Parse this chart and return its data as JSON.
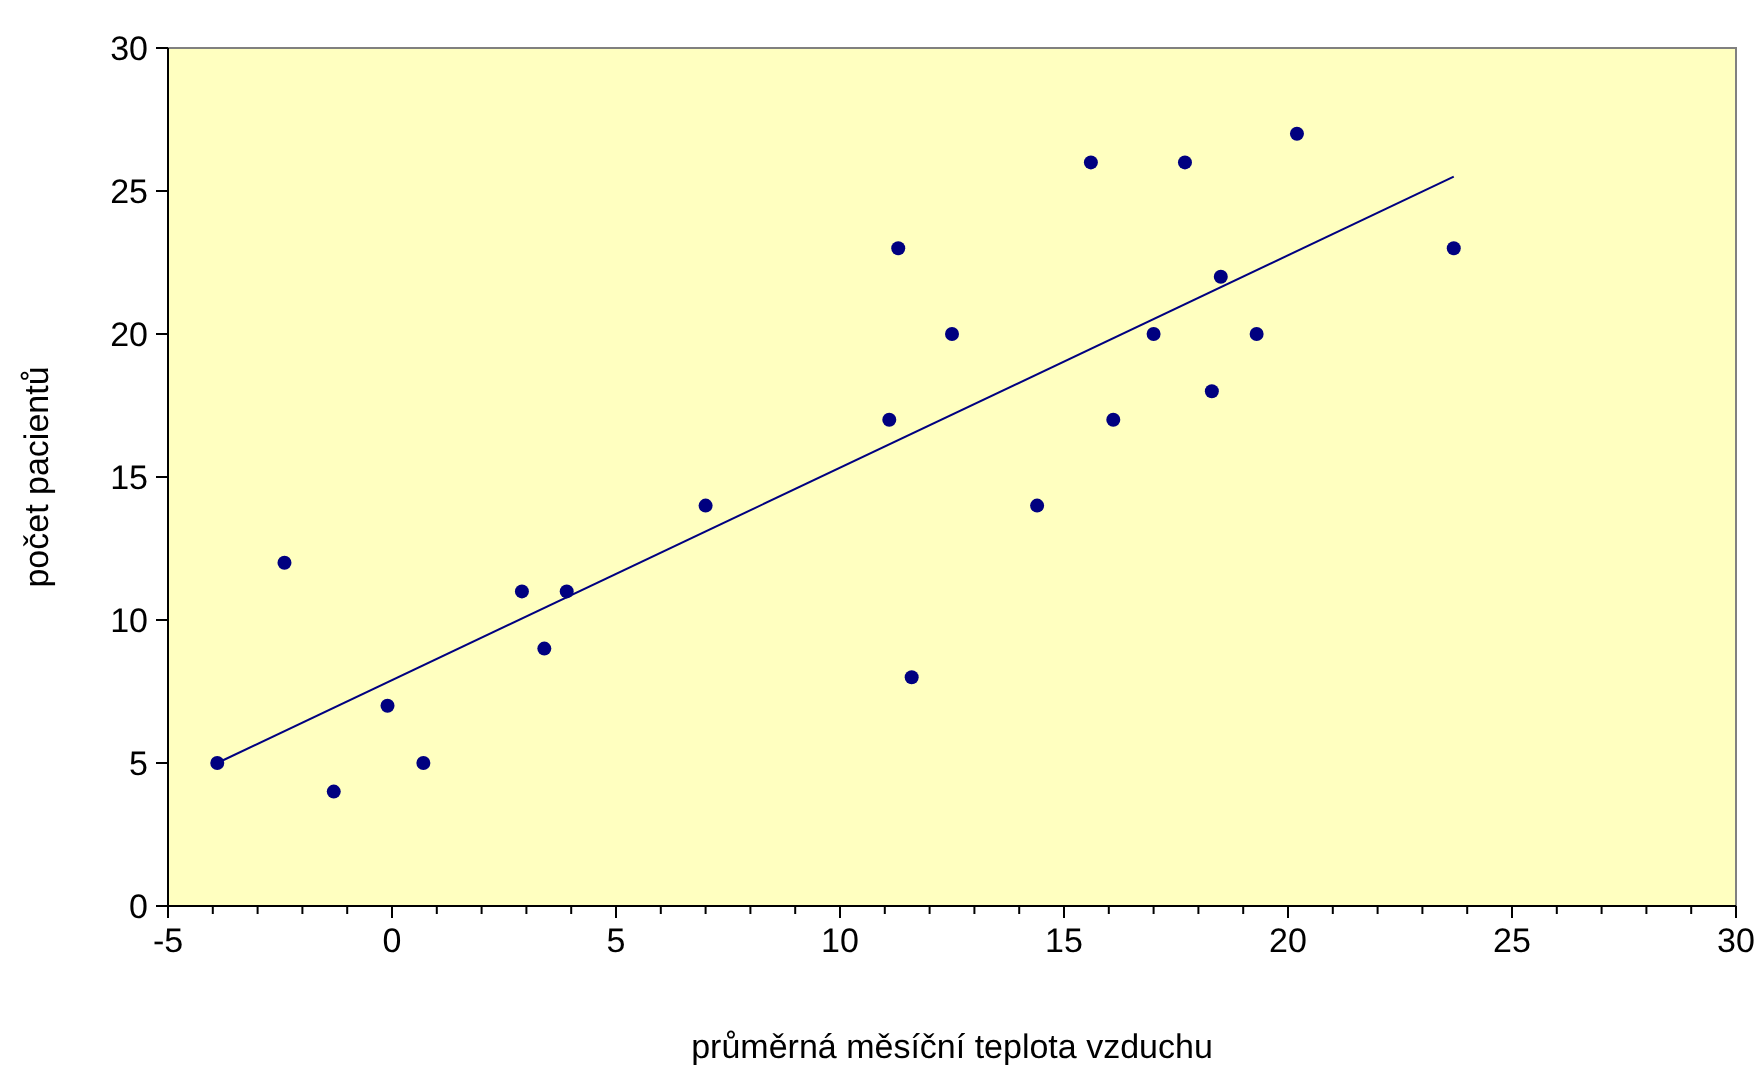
{
  "chart_data": {
    "type": "scatter",
    "xlabel": "průměrná měsíční teplota vzduchu",
    "ylabel": "počet pacientů",
    "xlim": [
      -5,
      30
    ],
    "ylim": [
      0,
      30
    ],
    "xticks": [
      -5,
      {
        "value": -4,
        "label": null
      },
      {
        "value": -3,
        "label": null
      },
      {
        "value": -2,
        "label": null
      },
      {
        "value": -1,
        "label": null
      },
      0,
      {
        "value": 1,
        "label": null
      },
      {
        "value": 2,
        "label": null
      },
      {
        "value": 3,
        "label": null
      },
      {
        "value": 4,
        "label": null
      },
      5,
      {
        "value": 6,
        "label": null
      },
      {
        "value": 7,
        "label": null
      },
      {
        "value": 8,
        "label": null
      },
      {
        "value": 9,
        "label": null
      },
      10,
      {
        "value": 11,
        "label": null
      },
      {
        "value": 12,
        "label": null
      },
      {
        "value": 13,
        "label": null
      },
      {
        "value": 14,
        "label": null
      },
      15,
      {
        "value": 16,
        "label": null
      },
      {
        "value": 17,
        "label": null
      },
      {
        "value": 18,
        "label": null
      },
      {
        "value": 19,
        "label": null
      },
      20,
      {
        "value": 21,
        "label": null
      },
      {
        "value": 22,
        "label": null
      },
      {
        "value": 23,
        "label": null
      },
      {
        "value": 24,
        "label": null
      },
      25,
      {
        "value": 26,
        "label": null
      },
      {
        "value": 27,
        "label": null
      },
      {
        "value": 28,
        "label": null
      },
      {
        "value": 29,
        "label": null
      },
      30
    ],
    "yticks": [
      0,
      5,
      10,
      15,
      20,
      25,
      30
    ],
    "grid": false,
    "series": [
      {
        "marker": "circle",
        "color": "#000080",
        "x": [
          -3.9,
          -2.4,
          -1.3,
          -0.1,
          0.7,
          2.9,
          3.4,
          3.9,
          7.0,
          11.1,
          11.3,
          11.6,
          12.5,
          14.4,
          15.6,
          16.1,
          17.0,
          17.7,
          18.3,
          18.5,
          19.3,
          20.2,
          23.7
        ],
        "values": [
          5,
          12,
          4,
          7,
          5,
          11,
          9,
          11,
          14,
          17,
          23,
          8,
          20,
          14,
          26,
          17,
          20,
          26,
          18,
          22,
          20,
          27,
          23
        ]
      },
      {
        "type": "line",
        "color": "#000080",
        "x": [
          -3.9,
          23.7
        ],
        "values": [
          5,
          25.5
        ]
      }
    ]
  }
}
